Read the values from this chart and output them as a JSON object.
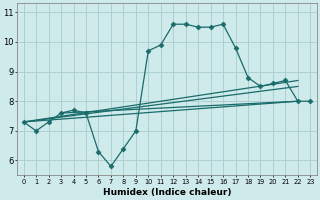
{
  "xlabel": "Humidex (Indice chaleur)",
  "bg_color": "#ceeaea",
  "grid_color": "#aed0d0",
  "line_color": "#1a6b6b",
  "x": [
    0,
    1,
    2,
    3,
    4,
    5,
    6,
    7,
    8,
    9,
    10,
    11,
    12,
    13,
    14,
    15,
    16,
    17,
    18,
    19,
    20,
    21,
    22,
    23
  ],
  "line1": [
    7.3,
    7.0,
    7.3,
    7.6,
    7.7,
    7.6,
    6.3,
    5.8,
    6.4,
    7.0,
    9.7,
    9.9,
    10.6,
    10.6,
    10.5,
    10.5,
    10.6,
    9.8,
    8.8,
    8.5,
    8.6,
    8.7,
    8.0,
    8.0
  ],
  "straight_lines": [
    [
      0,
      7.3,
      22,
      8.0
    ],
    [
      0,
      7.3,
      22,
      8.5
    ],
    [
      0,
      7.3,
      22,
      8.7
    ],
    [
      3,
      7.6,
      22,
      8.0
    ]
  ],
  "ylim": [
    5.5,
    11.3
  ],
  "yticks": [
    6,
    7,
    8,
    9,
    10,
    11
  ],
  "marker": "D",
  "markersize": 2.5,
  "linewidth": 0.9
}
